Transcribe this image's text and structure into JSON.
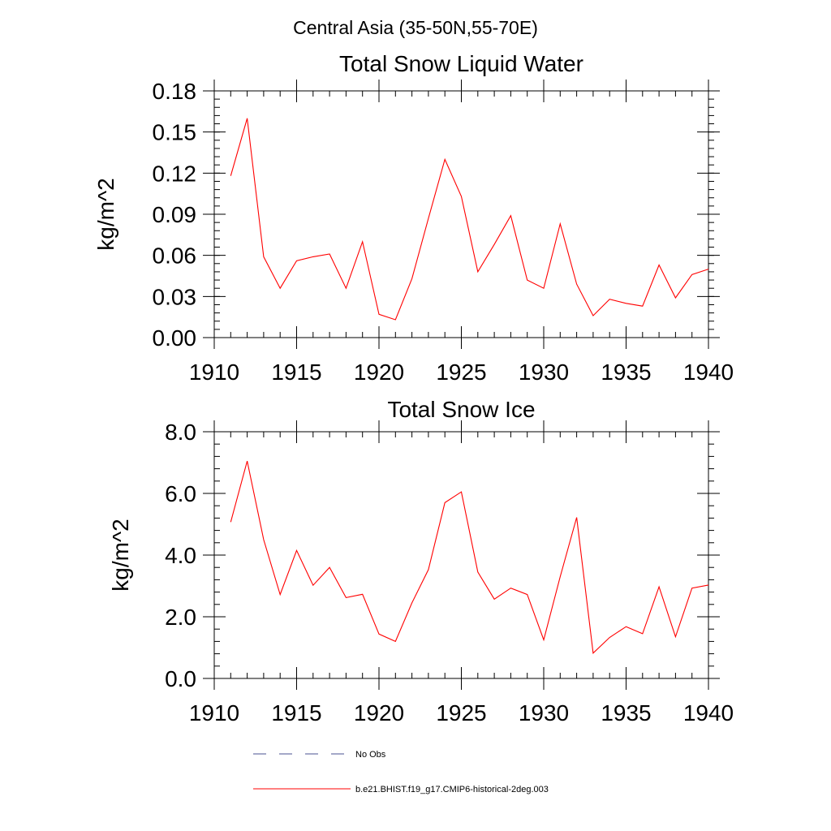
{
  "figure": {
    "title": "Central Asia (35-50N,55-70E)"
  },
  "colors": {
    "model": "#ff0000",
    "obs": "#4a5090",
    "axes": "#000000",
    "background": "#ffffff"
  },
  "legend": {
    "placement": "bottom",
    "entries": [
      {
        "label": "No Obs",
        "style": "dashed",
        "color": "#4a5090"
      },
      {
        "label": "b.e21.BHIST.f19_g17.CMIP6-historical-2deg.003",
        "style": "solid",
        "color": "#ff0000"
      }
    ]
  },
  "chart_data": [
    {
      "type": "line",
      "title": "Total Snow Liquid Water",
      "xlabel": "",
      "ylabel": "kg/m^2",
      "xlim": [
        1910,
        1940
      ],
      "ylim": [
        0,
        0.18
      ],
      "xticks": [
        1910,
        1915,
        1920,
        1925,
        1930,
        1935,
        1940
      ],
      "xtick_labels": [
        "1910",
        "1915",
        "1920",
        "1925",
        "1930",
        "1935",
        "1940"
      ],
      "yticks": [
        0,
        0.03,
        0.06,
        0.09,
        0.12,
        0.15,
        0.18
      ],
      "ytick_labels": [
        "0.00",
        "0.03",
        "0.06",
        "0.09",
        "0.12",
        "0.15",
        "0.18"
      ],
      "y_minor_step": 0.006,
      "x_minor_step": 1,
      "grid": false,
      "series": [
        {
          "name": "b.e21.BHIST.f19_g17.CMIP6-historical-2deg.003",
          "color": "#ff0000",
          "x": [
            1911,
            1912,
            1913,
            1914,
            1915,
            1916,
            1917,
            1918,
            1919,
            1920,
            1921,
            1922,
            1923,
            1924,
            1925,
            1926,
            1927,
            1928,
            1929,
            1930,
            1931,
            1932,
            1933,
            1934,
            1935,
            1936,
            1937,
            1938,
            1939,
            1940
          ],
          "y": [
            0.118,
            0.16,
            0.059,
            0.036,
            0.056,
            0.059,
            0.061,
            0.036,
            0.07,
            0.017,
            0.013,
            0.043,
            0.087,
            0.13,
            0.103,
            0.048,
            0.068,
            0.089,
            0.042,
            0.036,
            0.083,
            0.039,
            0.016,
            0.028,
            0.025,
            0.023,
            0.053,
            0.029,
            0.046,
            0.05
          ]
        }
      ]
    },
    {
      "type": "line",
      "title": "Total Snow Ice",
      "xlabel": "",
      "ylabel": "kg/m^2",
      "xlim": [
        1910,
        1940
      ],
      "ylim": [
        0,
        8.0
      ],
      "xticks": [
        1910,
        1915,
        1920,
        1925,
        1930,
        1935,
        1940
      ],
      "xtick_labels": [
        "1910",
        "1915",
        "1920",
        "1925",
        "1930",
        "1935",
        "1940"
      ],
      "yticks": [
        0,
        2,
        4,
        6,
        8
      ],
      "ytick_labels": [
        "0.0",
        "2.0",
        "4.0",
        "6.0",
        "8.0"
      ],
      "y_minor_step": 0.4,
      "x_minor_step": 1,
      "grid": false,
      "series": [
        {
          "name": "b.e21.BHIST.f19_g17.CMIP6-historical-2deg.003",
          "color": "#ff0000",
          "x": [
            1911,
            1912,
            1913,
            1914,
            1915,
            1916,
            1917,
            1918,
            1919,
            1920,
            1921,
            1922,
            1923,
            1924,
            1925,
            1926,
            1927,
            1928,
            1929,
            1930,
            1931,
            1932,
            1933,
            1934,
            1935,
            1936,
            1937,
            1938,
            1939,
            1940
          ],
          "y": [
            5.07,
            7.05,
            4.5,
            2.72,
            4.15,
            3.02,
            3.6,
            2.62,
            2.73,
            1.44,
            1.2,
            2.45,
            3.53,
            5.7,
            6.05,
            3.45,
            2.57,
            2.93,
            2.72,
            1.25,
            3.3,
            5.22,
            0.82,
            1.33,
            1.68,
            1.45,
            2.97,
            1.35,
            2.93,
            3.03
          ]
        }
      ]
    }
  ]
}
